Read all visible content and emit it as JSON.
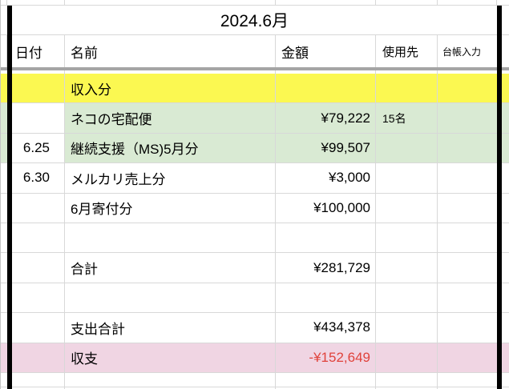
{
  "sheet": {
    "title": "2024.6月"
  },
  "header": {
    "date": "日付",
    "name": "名前",
    "amount": "金額",
    "usage": "使用先",
    "ledger": "台帳入力"
  },
  "rows": [
    {
      "date": "",
      "name": "収入分",
      "amount": "",
      "usage": "",
      "ledger": "",
      "bg": "yellow",
      "date_bg": "yellow"
    },
    {
      "date": "",
      "name": "ネコの宅配便",
      "amount": "¥79,222",
      "usage": "15名",
      "ledger": "",
      "bg": "green",
      "date_bg": "white"
    },
    {
      "date": "6.25",
      "name": "継続支援（MS)5月分",
      "amount": "¥99,507",
      "usage": "",
      "ledger": "",
      "bg": "green",
      "date_bg": "white"
    },
    {
      "date": "6.30",
      "name": "メルカリ売上分",
      "amount": "¥3,000",
      "usage": "",
      "ledger": "",
      "bg": "white",
      "date_bg": "white"
    },
    {
      "date": "",
      "name": "6月寄付分",
      "amount": "¥100,000",
      "usage": "",
      "ledger": "",
      "bg": "white",
      "date_bg": "white"
    },
    {
      "date": "",
      "name": "",
      "amount": "",
      "usage": "",
      "ledger": "",
      "bg": "white",
      "date_bg": "white"
    },
    {
      "date": "",
      "name": "合計",
      "amount": "¥281,729",
      "usage": "",
      "ledger": "",
      "bg": "white",
      "date_bg": "white"
    },
    {
      "date": "",
      "name": "",
      "amount": "",
      "usage": "",
      "ledger": "",
      "bg": "white",
      "date_bg": "white"
    },
    {
      "date": "",
      "name": "支出合計",
      "amount": "¥434,378",
      "usage": "",
      "ledger": "",
      "bg": "white",
      "date_bg": "white"
    },
    {
      "date": "",
      "name": "収支",
      "amount": "-¥152,649",
      "usage": "",
      "ledger": "",
      "bg": "pink",
      "date_bg": "pink",
      "amount_color": "red"
    }
  ],
  "colors": {
    "yellow": "#fbf851",
    "green": "#d9ead3",
    "pink": "#f0d5e3",
    "negative_red": "#e0423b",
    "gridline": "#d8d8d8",
    "header_band": "#a5a5a5",
    "frame": "#000000",
    "text": "#000000"
  }
}
